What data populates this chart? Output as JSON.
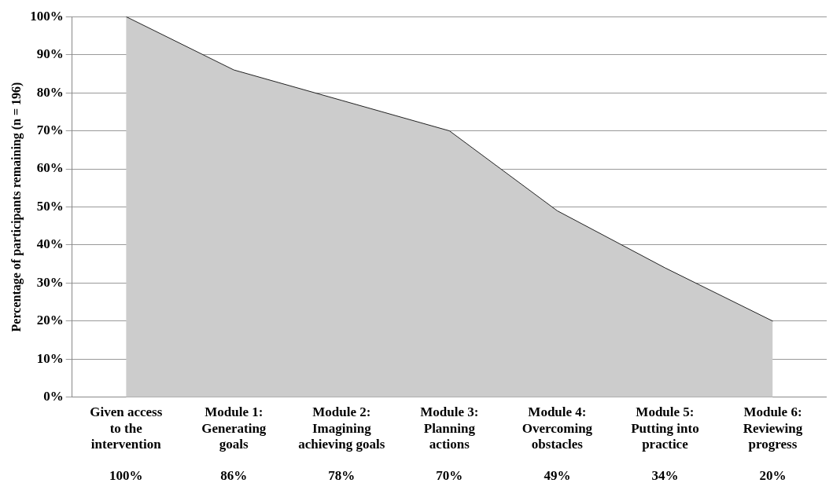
{
  "chart_data": {
    "type": "area",
    "ylabel": "Percentage of participants remaining (n = 196)",
    "categories": [
      "Given access\nto the\nintervention",
      "Module 1:\nGenerating\ngoals",
      "Module 2:\nImagining\nachieving goals",
      "Module 3:\nPlanning\nactions",
      "Module 4:\nOvercoming\nobstacles",
      "Module 5:\nPutting into\npractice",
      "Module 6:\nReviewing\nprogress"
    ],
    "series": [
      {
        "color": "#cccccc",
        "values": [
          100,
          86,
          78,
          70,
          49,
          34,
          20
        ]
      }
    ],
    "value_labels": [
      "100%",
      "86%",
      "78%",
      "70%",
      "49%",
      "34%",
      "20%"
    ],
    "ylim": [
      0,
      100
    ],
    "yticks": [
      {
        "value": 0,
        "label": "0%"
      },
      {
        "value": 10,
        "label": "10%"
      },
      {
        "value": 20,
        "label": "20%"
      },
      {
        "value": 30,
        "label": "30%"
      },
      {
        "value": 40,
        "label": "40%"
      },
      {
        "value": 50,
        "label": "50%"
      },
      {
        "value": 60,
        "label": "60%"
      },
      {
        "value": 70,
        "label": "70%"
      },
      {
        "value": 80,
        "label": "80%"
      },
      {
        "value": 90,
        "label": "90%"
      },
      {
        "value": 100,
        "label": "100%"
      }
    ],
    "grid": "y",
    "legend": false,
    "marker": "none",
    "line_style": "solid"
  }
}
